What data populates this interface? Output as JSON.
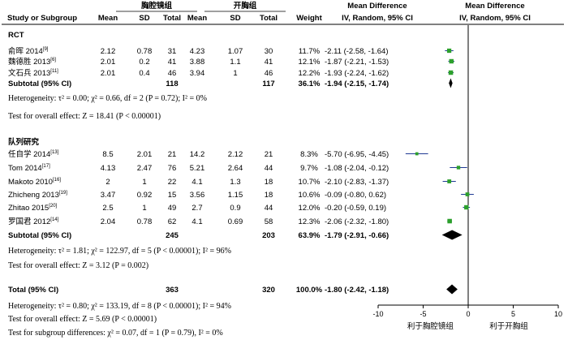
{
  "chart_data": {
    "type": "forest",
    "columns": {
      "study": "Study or Subgroup",
      "group1": "胸腔镜组",
      "group2": "开胸组",
      "mean": "Mean",
      "sd": "SD",
      "total": "Total",
      "weight": "Weight",
      "md_title": "Mean Difference",
      "md_method": "IV, Random, 95% CI"
    },
    "subgroups": [
      {
        "name": "RCT",
        "studies": [
          {
            "study": "俞晖 2014",
            "ref": "[9]",
            "m1": "2.12",
            "sd1": "0.78",
            "n1": "31",
            "m2": "4.23",
            "sd2": "1.07",
            "n2": "30",
            "weight": "11.7%",
            "ci_text": "-2.11 (-2.58, -1.64)",
            "md": -2.11,
            "lo": -2.58,
            "hi": -1.64
          },
          {
            "study": "魏德胜 2013",
            "ref": "[6]",
            "m1": "2.01",
            "sd1": "0.2",
            "n1": "41",
            "m2": "3.88",
            "sd2": "1.1",
            "n2": "41",
            "weight": "12.1%",
            "ci_text": "-1.87 (-2.21, -1.53)",
            "md": -1.87,
            "lo": -2.21,
            "hi": -1.53
          },
          {
            "study": "文石兵 2013",
            "ref": "[11]",
            "m1": "2.01",
            "sd1": "0.4",
            "n1": "46",
            "m2": "3.94",
            "sd2": "1",
            "n2": "46",
            "weight": "12.2%",
            "ci_text": "-1.93 (-2.24, -1.62)",
            "md": -1.93,
            "lo": -2.24,
            "hi": -1.62
          }
        ],
        "subtotal": {
          "label": "Subtotal (95% CI)",
          "n1": "118",
          "n2": "117",
          "weight": "36.1%",
          "ci_text": "-1.94 (-2.15, -1.74)",
          "md": -1.94,
          "lo": -2.15,
          "hi": -1.74
        },
        "heterogeneity": "Heterogeneity: τ² = 0.00; χ² = 0.66, df = 2 (P = 0.72); I² = 0%",
        "overall_effect": "Test for overall effect: Z = 18.41 (P < 0.00001)"
      },
      {
        "name": "队列研究",
        "studies": [
          {
            "study": "任自学 2014",
            "ref": "[13]",
            "m1": "8.5",
            "sd1": "2.01",
            "n1": "21",
            "m2": "14.2",
            "sd2": "2.12",
            "n2": "21",
            "weight": "8.3%",
            "ci_text": "-5.70 (-6.95, -4.45)",
            "md": -5.7,
            "lo": -6.95,
            "hi": -4.45
          },
          {
            "study": "Tom 2014",
            "ref": "[17]",
            "m1": "4.13",
            "sd1": "2.47",
            "n1": "76",
            "m2": "5.21",
            "sd2": "2.64",
            "n2": "44",
            "weight": "9.7%",
            "ci_text": "-1.08 (-2.04, -0.12)",
            "md": -1.08,
            "lo": -2.04,
            "hi": -0.12
          },
          {
            "study": "Makoto 2010",
            "ref": "[16]",
            "m1": "2",
            "sd1": "1",
            "n1": "22",
            "m2": "4.1",
            "sd2": "1.3",
            "n2": "18",
            "weight": "10.7%",
            "ci_text": "-2.10 (-2.83, -1.37)",
            "md": -2.1,
            "lo": -2.83,
            "hi": -1.37
          },
          {
            "study": "Zhicheng 2013",
            "ref": "[19]",
            "m1": "3.47",
            "sd1": "0.92",
            "n1": "15",
            "m2": "3.56",
            "sd2": "1.15",
            "n2": "18",
            "weight": "10.6%",
            "ci_text": "-0.09 (-0.80, 0.62)",
            "md": -0.09,
            "lo": -0.8,
            "hi": 0.62
          },
          {
            "study": "Zhitao 2015",
            "ref": "[20]",
            "m1": "2.5",
            "sd1": "1",
            "n1": "49",
            "m2": "2.7",
            "sd2": "0.9",
            "n2": "44",
            "weight": "12.0%",
            "ci_text": "-0.20 (-0.59, 0.19)",
            "md": -0.2,
            "lo": -0.59,
            "hi": 0.19
          },
          {
            "study": "罗国君 2012",
            "ref": "[14]",
            "m1": "2.04",
            "sd1": "0.78",
            "n1": "62",
            "m2": "4.1",
            "sd2": "0.69",
            "n2": "58",
            "weight": "12.3%",
            "ci_text": "-2.06 (-2.32, -1.80)",
            "md": -2.06,
            "lo": -2.32,
            "hi": -1.8
          }
        ],
        "subtotal": {
          "label": "Subtotal (95% CI)",
          "n1": "245",
          "n2": "203",
          "weight": "63.9%",
          "ci_text": "-1.79 (-2.91, -0.66)",
          "md": -1.79,
          "lo": -2.91,
          "hi": -0.66
        },
        "heterogeneity": "Heterogeneity: τ² = 1.81; χ² = 122.97, df = 5 (P < 0.00001); I² = 96%",
        "overall_effect": "Test for overall effect: Z = 3.12 (P = 0.002)"
      }
    ],
    "total": {
      "label": "Total (95% CI)",
      "n1": "363",
      "n2": "320",
      "weight": "100.0%",
      "ci_text": "-1.80 (-2.42, -1.18)",
      "md": -1.8,
      "lo": -2.42,
      "hi": -1.18
    },
    "total_heterogeneity": "Heterogeneity: τ² = 0.80; χ² = 133.19, df = 8 (P < 0.00001); I² = 94%",
    "total_overall_effect": "Test for overall effect: Z = 5.69 (P < 0.00001)",
    "subgroup_differences": "Test for subgroup differences: χ² = 0.07, df = 1 (P = 0.79), I² = 0%",
    "xaxis": {
      "ticks": [
        -10,
        -5,
        0,
        5,
        10
      ],
      "range": [
        -10,
        10
      ]
    },
    "favours_left": "利于胸腔镜组",
    "favours_right": "利于开胸组",
    "colors": {
      "square": "#2ca02c",
      "ci_line": "#1f3a93",
      "diamond": "#000000"
    }
  }
}
